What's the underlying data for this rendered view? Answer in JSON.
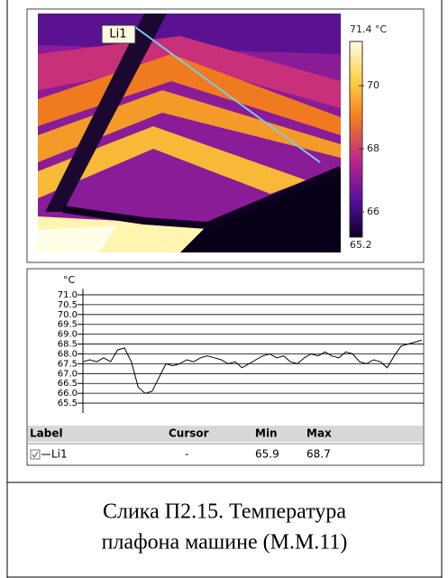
{
  "thermal_image": {
    "line_label": "Li1",
    "colorbar": {
      "lim": [
        65.2,
        71.4
      ],
      "ticks": [
        {
          "value": 71.4,
          "label": "71.4 °C"
        },
        70,
        68,
        66,
        65.2
      ]
    }
  },
  "chart_data": {
    "type": "line",
    "y_unit": "°C",
    "color": "#000000",
    "grid": true,
    "ylim": [
      65.0,
      71.3
    ],
    "yticks": [
      {
        "value": 71,
        "label": "71.0"
      },
      70.5,
      {
        "value": 70,
        "label": "70.0"
      },
      69.5,
      {
        "value": 69,
        "label": "69.0"
      },
      68.5,
      {
        "value": 68,
        "label": "68.0"
      },
      67.5,
      {
        "value": 67,
        "label": "67.0"
      },
      66.5,
      {
        "value": 66,
        "label": "66.0"
      },
      65.5
    ],
    "values": [
      67.6,
      67.7,
      67.6,
      67.8,
      67.6,
      68.2,
      68.3,
      67.6,
      66.3,
      66.0,
      66.1,
      66.8,
      67.5,
      67.4,
      67.5,
      67.7,
      67.6,
      67.8,
      67.9,
      67.8,
      67.7,
      67.5,
      67.6,
      67.3,
      67.5,
      67.7,
      67.9,
      68.0,
      67.8,
      67.9,
      67.6,
      67.5,
      67.8,
      68.0,
      67.9,
      68.1,
      67.9,
      67.8,
      68.1,
      68.0,
      67.6,
      67.5,
      67.7,
      67.6,
      67.3,
      67.9,
      68.4,
      68.5,
      68.6,
      68.7
    ]
  },
  "results_table": {
    "header": [
      "Label",
      "Cursor",
      "Min",
      "Max"
    ],
    "rows": [
      [
        "Li1",
        "-",
        65.9,
        68.7
      ]
    ]
  },
  "caption": [
    "Слика П2.15. Температура",
    "плафона машине (М.М.11)"
  ]
}
